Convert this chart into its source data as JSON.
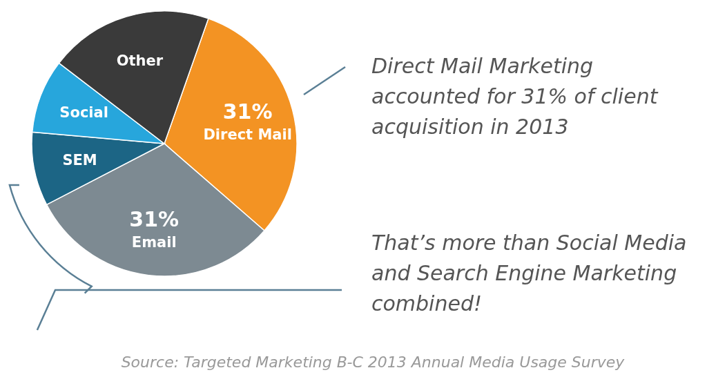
{
  "chart_data": {
    "type": "pie",
    "categories": [
      "Direct Mail",
      "Email",
      "SEM",
      "Social",
      "Other"
    ],
    "values": [
      31,
      31,
      9,
      9,
      20
    ],
    "value_labels": [
      "31%",
      "31%",
      null,
      null,
      null
    ],
    "colors": [
      "#f39323",
      "#7d8a92",
      "#1c6585",
      "#27a6dc",
      "#3a3a3a"
    ],
    "annotations": [
      "Direct Mail Marketing accounted for 31% of client acquisition in 2013",
      "That’s more than Social Media and Search Engine Marketing combined!",
      "Source: Targeted Marketing B-C 2013 Annual Media Usage Survey"
    ]
  }
}
